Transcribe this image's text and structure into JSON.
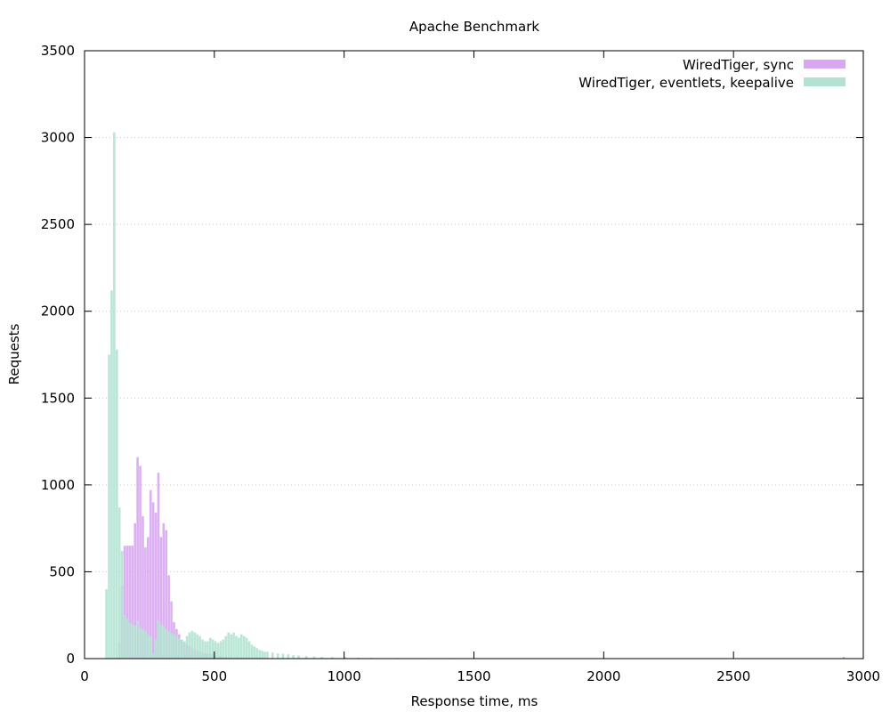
{
  "chart_data": {
    "type": "bar",
    "title": "Apache Benchmark",
    "xlabel": "Response time, ms",
    "ylabel": "Requests",
    "xlim": [
      0,
      3000
    ],
    "ylim": [
      0,
      3500
    ],
    "x_ticks": [
      0,
      500,
      1000,
      1500,
      2000,
      2500,
      3000
    ],
    "y_ticks": [
      0,
      500,
      1000,
      1500,
      2000,
      2500,
      3000,
      3500
    ],
    "grid": "horizontal dotted",
    "legend_position": "top-right",
    "bin_width_ms": 10,
    "series": [
      {
        "name": "WiredTiger, sync",
        "color": "#d9a6f2",
        "x": [
          130,
          140,
          150,
          160,
          170,
          180,
          190,
          200,
          210,
          220,
          230,
          240,
          250,
          260,
          270,
          280,
          290,
          300,
          310,
          320,
          330,
          340,
          350,
          360,
          370,
          380,
          390,
          400,
          410,
          420,
          430,
          440,
          450,
          460,
          470,
          480,
          490,
          500,
          520,
          540,
          560,
          580,
          600,
          620,
          650,
          700,
          750,
          800,
          900,
          1000,
          2920
        ],
        "values": [
          90,
          420,
          650,
          650,
          650,
          650,
          780,
          1160,
          1110,
          820,
          640,
          700,
          970,
          900,
          840,
          1070,
          700,
          780,
          740,
          480,
          330,
          210,
          170,
          140,
          110,
          90,
          80,
          70,
          60,
          50,
          45,
          40,
          35,
          30,
          30,
          25,
          25,
          20,
          15,
          10,
          8,
          6,
          5,
          4,
          3,
          2,
          2,
          1,
          1,
          1,
          10
        ]
      },
      {
        "name": "WiredTiger, eventlets, keepalive",
        "color": "#b2e3d2",
        "x": [
          80,
          90,
          100,
          110,
          120,
          130,
          140,
          150,
          160,
          170,
          180,
          190,
          200,
          210,
          220,
          230,
          240,
          250,
          260,
          270,
          280,
          290,
          300,
          310,
          320,
          330,
          340,
          350,
          360,
          370,
          380,
          390,
          400,
          410,
          420,
          430,
          440,
          450,
          460,
          470,
          480,
          490,
          500,
          510,
          520,
          530,
          540,
          550,
          560,
          570,
          580,
          590,
          600,
          610,
          620,
          630,
          640,
          650,
          660,
          670,
          680,
          690,
          700,
          720,
          740,
          760,
          780,
          800,
          820,
          850,
          880,
          910,
          950,
          1000,
          1050,
          1100,
          1200,
          1300,
          1400,
          1500,
          1600,
          1700,
          1800
        ],
        "values": [
          400,
          1750,
          2120,
          3030,
          1780,
          870,
          620,
          250,
          230,
          210,
          200,
          190,
          220,
          180,
          170,
          160,
          140,
          130,
          30,
          110,
          220,
          200,
          190,
          170,
          160,
          150,
          140,
          130,
          120,
          110,
          100,
          130,
          150,
          160,
          150,
          140,
          130,
          110,
          100,
          100,
          120,
          110,
          100,
          90,
          100,
          110,
          130,
          150,
          140,
          150,
          130,
          120,
          140,
          130,
          120,
          100,
          80,
          70,
          60,
          50,
          45,
          40,
          40,
          35,
          30,
          28,
          25,
          20,
          18,
          15,
          12,
          10,
          10,
          8,
          6,
          5,
          4,
          3,
          3,
          2,
          2,
          2,
          1
        ]
      }
    ]
  }
}
